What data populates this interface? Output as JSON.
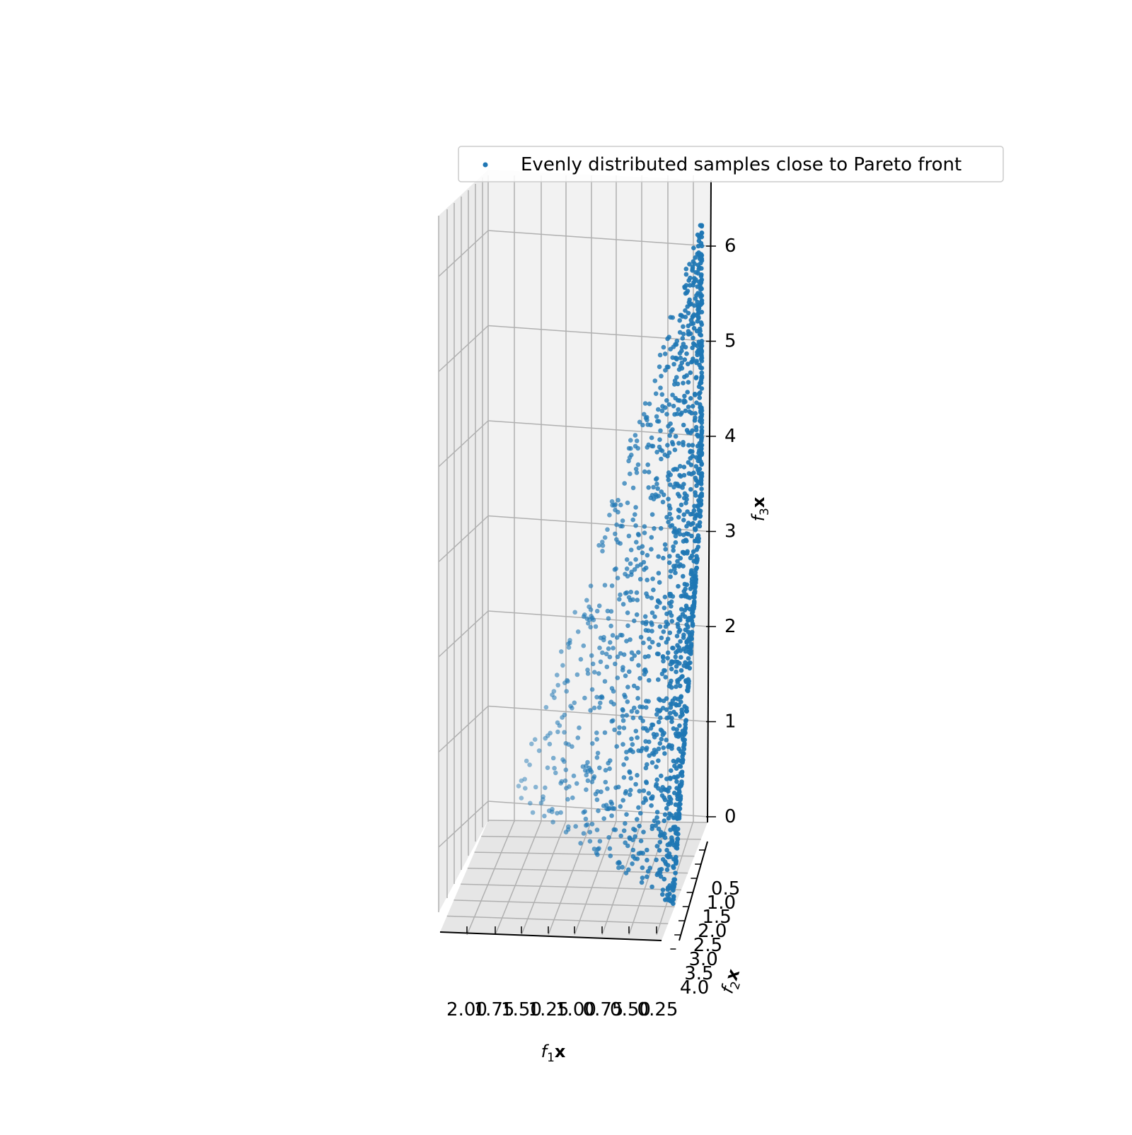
{
  "chart_data": {
    "type": "scatter",
    "projection": "3d",
    "title": "",
    "xlabel": {
      "main": "f",
      "sub": "1",
      "bold": "x"
    },
    "ylabel": {
      "main": "f",
      "sub": "2",
      "bold": "x"
    },
    "zlabel": {
      "main": "f",
      "sub": "3",
      "bold": "x"
    },
    "x_ticks": [
      "2.00",
      "1.75",
      "1.50",
      "1.25",
      "1.00",
      "0.75",
      "0.50",
      "0.25"
    ],
    "y_ticks": [
      "0.5",
      "1.0",
      "1.5",
      "2.0",
      "2.5",
      "3.0",
      "3.5",
      "4.0"
    ],
    "z_ticks": [
      "0",
      "1",
      "2",
      "3",
      "4",
      "5",
      "6"
    ],
    "xlim": [
      2.1,
      0.15
    ],
    "ylim": [
      0.3,
      4.1
    ],
    "zlim": [
      -0.2,
      6.5
    ],
    "grid": true,
    "legend": {
      "position": "top-right",
      "entries": [
        "Evenly distributed samples close to Pareto front"
      ]
    },
    "series": [
      {
        "name": "Evenly distributed samples close to Pareto front",
        "color": "#1f77b4",
        "points": [
          {
            "x": 0.31,
            "y": 3.6,
            "z": 6.1
          },
          {
            "x": 0.28,
            "y": 3.6,
            "z": 5.9
          },
          {
            "x": 0.3,
            "y": 3.5,
            "z": 5.6
          },
          {
            "x": 0.33,
            "y": 3.4,
            "z": 5.3
          },
          {
            "x": 0.35,
            "y": 3.4,
            "z": 5.0
          },
          {
            "x": 0.4,
            "y": 3.3,
            "z": 4.7
          },
          {
            "x": 0.45,
            "y": 3.3,
            "z": 4.4
          },
          {
            "x": 0.5,
            "y": 3.2,
            "z": 4.0
          },
          {
            "x": 0.6,
            "y": 3.1,
            "z": 3.6
          },
          {
            "x": 0.7,
            "y": 3.0,
            "z": 3.2
          },
          {
            "x": 0.85,
            "y": 2.9,
            "z": 2.8
          },
          {
            "x": 1.0,
            "y": 2.8,
            "z": 2.4
          },
          {
            "x": 1.2,
            "y": 2.7,
            "z": 2.0
          },
          {
            "x": 1.4,
            "y": 2.6,
            "z": 1.6
          },
          {
            "x": 1.6,
            "y": 2.5,
            "z": 1.2
          },
          {
            "x": 1.8,
            "y": 2.4,
            "z": 0.8
          },
          {
            "x": 1.95,
            "y": 2.3,
            "z": 0.3
          }
        ]
      }
    ]
  }
}
